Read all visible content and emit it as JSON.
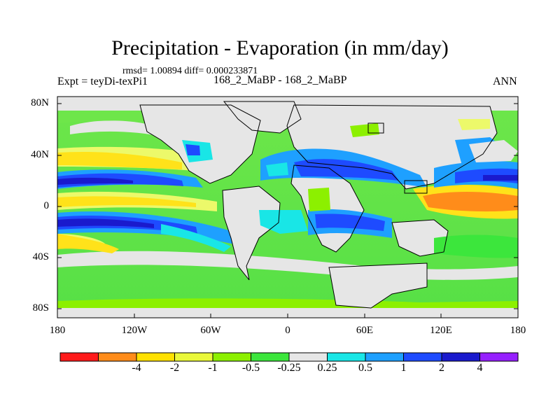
{
  "title": "Precipitation - Evaporation (in mm/day)",
  "stats": "rmsd= 1.00894 diff= 0.000233871",
  "experiment": "Expt = teyDi-texPi1",
  "subtitle": "168_2_MaBP - 168_2_MaBP",
  "season": "ANN",
  "axes": {
    "y_labels": [
      "80N",
      "40N",
      "0",
      "40S",
      "80S"
    ],
    "x_labels": [
      "180",
      "120W",
      "60W",
      "0",
      "60E",
      "120E",
      "180"
    ]
  },
  "colorbar": {
    "colors": [
      "#ff1a1a",
      "#ff8c1a",
      "#ffe100",
      "#eaf83a",
      "#8cf000",
      "#3ce63c",
      "#e6e6e6",
      "#19e6e6",
      "#1ea0ff",
      "#1e4bff",
      "#1a1acd",
      "#9620ff"
    ],
    "labels": [
      "-4",
      "-2",
      "-1",
      "-0.5",
      "-0.25",
      "0.25",
      "0.5",
      "1",
      "2",
      "4"
    ]
  },
  "land_color": "#e6e6e6"
}
